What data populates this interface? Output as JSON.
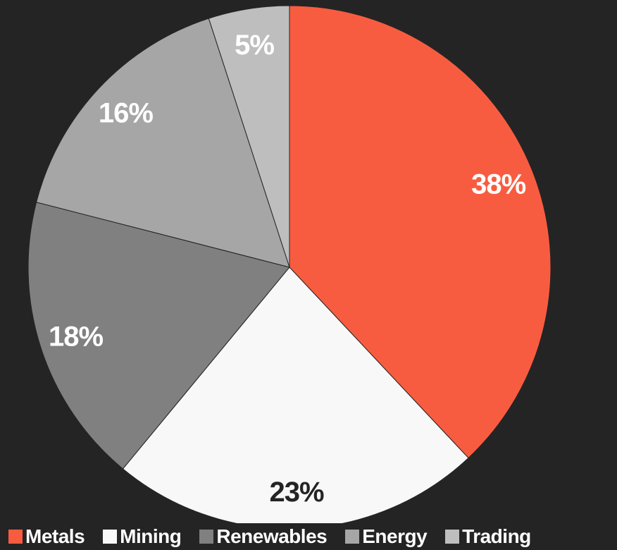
{
  "chart_data": {
    "type": "pie",
    "categories": [
      "Metals",
      "Mining",
      "Renewables",
      "Energy",
      "Trading"
    ],
    "values": [
      38,
      23,
      18,
      16,
      5
    ],
    "labels": [
      "38%",
      "23%",
      "18%",
      "16%",
      "5%"
    ],
    "colors": [
      "#f85c40",
      "#f8f8f8",
      "#808080",
      "#a6a6a6",
      "#bebebe"
    ],
    "label_colors": [
      "#ffffff",
      "#242424",
      "#ffffff",
      "#ffffff",
      "#ffffff"
    ],
    "start_angle": "12 o'clock",
    "direction": "clockwise",
    "legend_position": "bottom"
  },
  "theme": {
    "background": "#242424",
    "legend_text": "#ffffff",
    "slice_border": "#242424"
  }
}
